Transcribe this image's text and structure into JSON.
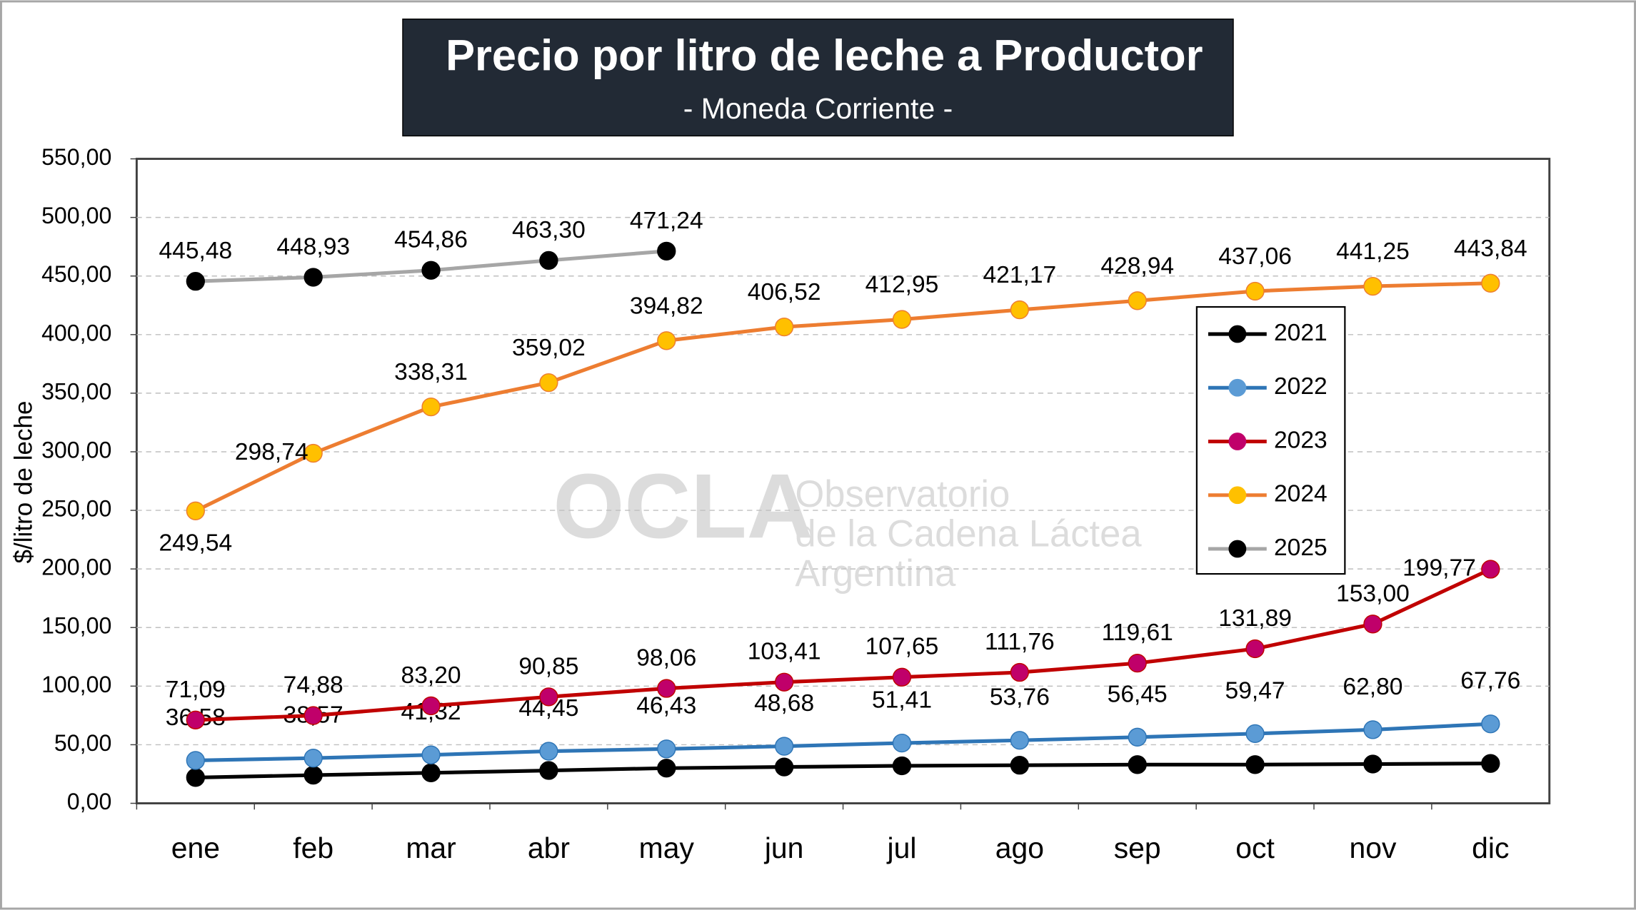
{
  "chart_data": {
    "type": "line",
    "title": "Precio por litro de leche a Productor",
    "subtitle": "- Moneda Corriente -",
    "y_label": "$/litro de leche",
    "watermark": [
      "OCLA",
      "Observatorio",
      "de la Cadena Láctea",
      "Argentina"
    ],
    "categories": [
      "ene",
      "feb",
      "mar",
      "abr",
      "may",
      "jun",
      "jul",
      "ago",
      "sep",
      "oct",
      "nov",
      "dic"
    ],
    "ylim": [
      0,
      550
    ],
    "yticks": [
      {
        "value": 0,
        "label": "0,00"
      },
      {
        "value": 50,
        "label": "50,00"
      },
      {
        "value": 100,
        "label": "100,00"
      },
      {
        "value": 150,
        "label": "150,00"
      },
      {
        "value": 200,
        "label": "200,00"
      },
      {
        "value": 250,
        "label": "250,00"
      },
      {
        "value": 300,
        "label": "300,00"
      },
      {
        "value": 350,
        "label": "350,00"
      },
      {
        "value": 400,
        "label": "400,00"
      },
      {
        "value": 450,
        "label": "450,00"
      },
      {
        "value": 500,
        "label": "500,00"
      },
      {
        "value": 550,
        "label": "550,00"
      }
    ],
    "grid": true,
    "legend": "right",
    "series": [
      {
        "name": "2021",
        "color": "#000000",
        "marker_color": "#000000",
        "values": [
          22,
          24,
          26,
          28,
          30,
          31,
          32,
          32.5,
          33,
          33,
          33.5,
          34
        ]
      },
      {
        "name": "2022",
        "color": "#2e75b6",
        "marker_color": "#5b9bd5",
        "values": [
          36.58,
          38.57,
          41.32,
          44.45,
          46.43,
          48.68,
          51.41,
          53.76,
          56.45,
          59.47,
          62.8,
          67.76
        ],
        "value_labels": [
          "36,58",
          "38,57",
          "41,32",
          "44,45",
          "46,43",
          "48,68",
          "51,41",
          "53,76",
          "56,45",
          "59,47",
          "62,80",
          "67,76"
        ]
      },
      {
        "name": "2023",
        "color": "#c00000",
        "marker_color": "#c0006a",
        "values": [
          71.09,
          74.88,
          83.2,
          90.85,
          98.06,
          103.41,
          107.65,
          111.76,
          119.61,
          131.89,
          153.0,
          199.77
        ],
        "value_labels": [
          "71,09",
          "74,88",
          "83,20",
          "90,85",
          "98,06",
          "103,41",
          "107,65",
          "111,76",
          "119,61",
          "131,89",
          "153,00",
          "199,77"
        ]
      },
      {
        "name": "2024",
        "color": "#ed7d31",
        "marker_color": "#ffc000",
        "values": [
          249.54,
          298.74,
          338.31,
          359.02,
          394.82,
          406.52,
          412.95,
          421.17,
          428.94,
          437.06,
          441.25,
          443.84
        ],
        "value_labels": [
          "249,54",
          "298,74",
          "338,31",
          "359,02",
          "394,82",
          "406,52",
          "412,95",
          "421,17",
          "428,94",
          "437,06",
          "441,25",
          "443,84"
        ]
      },
      {
        "name": "2025",
        "color": "#a6a6a6",
        "marker_color": "#000000",
        "values": [
          445.48,
          448.93,
          454.86,
          463.3,
          471.24,
          null,
          null,
          null,
          null,
          null,
          null,
          null
        ],
        "value_labels": [
          "445,48",
          "448,93",
          "454,86",
          "463,30",
          "471,24",
          null,
          null,
          null,
          null,
          null,
          null,
          null
        ]
      }
    ]
  }
}
